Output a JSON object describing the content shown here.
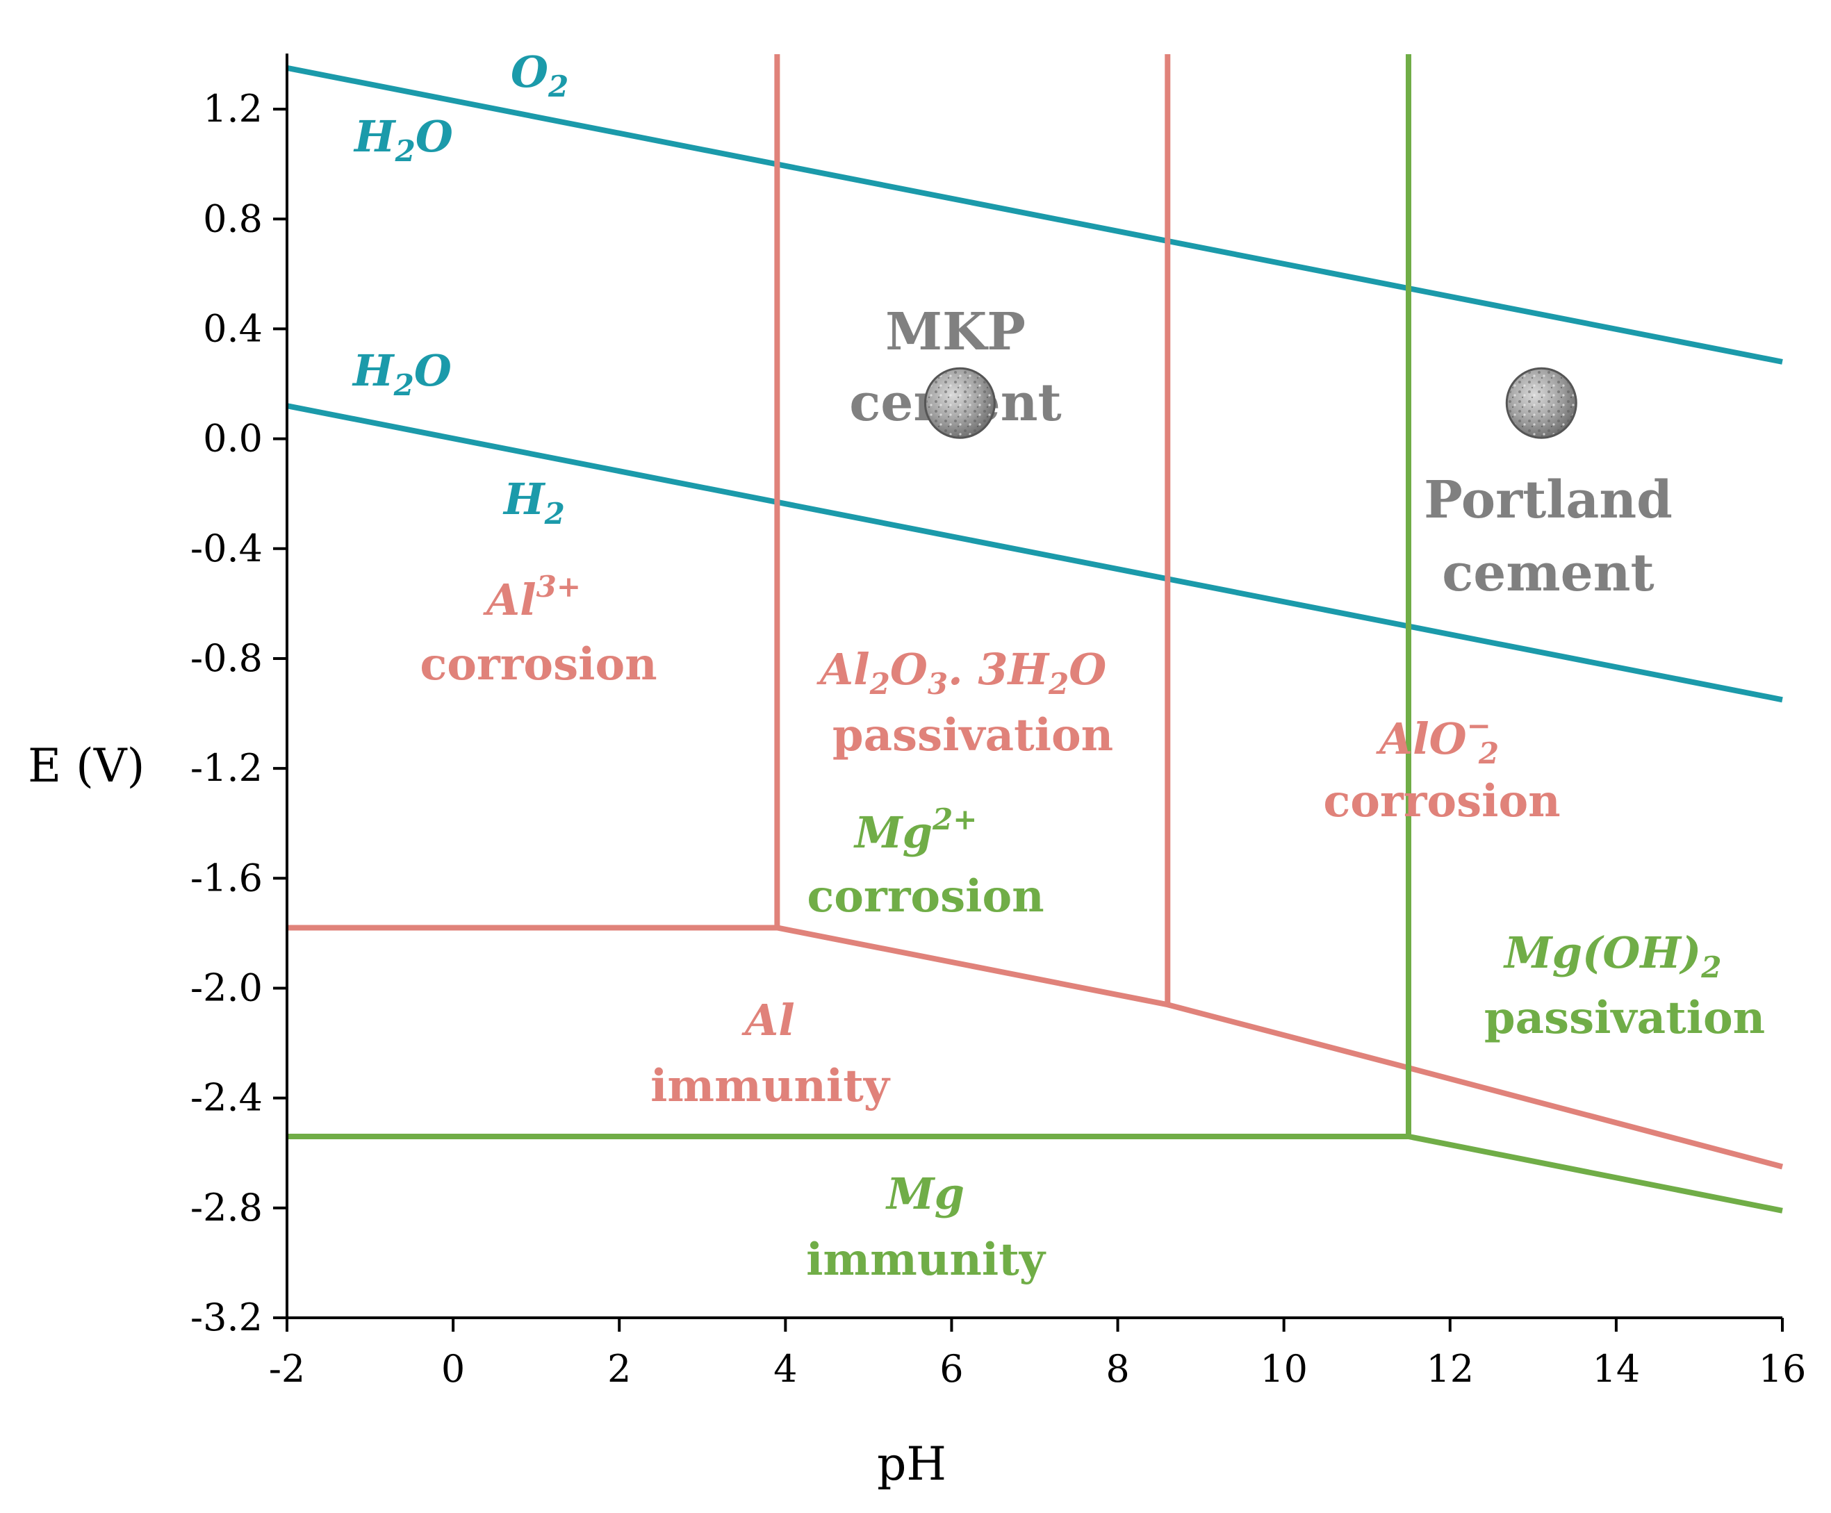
{
  "chart_data": {
    "type": "line",
    "title": "",
    "xlabel": "pH",
    "ylabel": "E (V)",
    "xlim": [
      -2,
      16
    ],
    "ylim": [
      -3.2,
      1.4
    ],
    "x_ticks": [
      -2,
      0,
      2,
      4,
      6,
      8,
      10,
      12,
      14,
      16
    ],
    "x_tick_labels": [
      "-2",
      "0",
      "2",
      "4",
      "6",
      "8",
      "10",
      "12",
      "14",
      "16"
    ],
    "y_ticks": [
      1.2,
      0.8,
      0.4,
      0.0,
      -0.4,
      -0.8,
      -1.2,
      -1.6,
      -2.0,
      -2.4,
      -2.8,
      -3.2
    ],
    "y_tick_labels": [
      "1.2",
      "0.8",
      "0.4",
      "0.0",
      "-0.4",
      "-0.8",
      "-1.2",
      "-1.6",
      "-2.0",
      "-2.4",
      "-2.8",
      "-3.2"
    ],
    "colors": {
      "water": "#1b9aaa",
      "aluminium": "#e0827a",
      "magnesium": "#70ad47",
      "cement_text": "#808080",
      "cement_marker": "#8c8c8c"
    },
    "series": [
      {
        "name": "water-o2-line",
        "group": "water",
        "x": [
          -2,
          16
        ],
        "y": [
          1.35,
          0.28
        ]
      },
      {
        "name": "water-h2-line",
        "group": "water",
        "x": [
          -2,
          16
        ],
        "y": [
          0.12,
          -0.95
        ]
      },
      {
        "name": "al-immunity-boundary",
        "group": "aluminium",
        "x": [
          -2,
          3.9,
          8.6,
          11.5,
          16
        ],
        "y": [
          -1.78,
          -1.78,
          -2.06,
          -2.29,
          -2.65
        ]
      },
      {
        "name": "al-al3plus-boundary",
        "group": "aluminium",
        "x": [
          3.9,
          3.9
        ],
        "y": [
          -1.78,
          1.4
        ]
      },
      {
        "name": "al-aluminate-boundary",
        "group": "aluminium",
        "x": [
          8.6,
          8.6
        ],
        "y": [
          -2.06,
          1.4
        ]
      },
      {
        "name": "mg-immunity-boundary",
        "group": "magnesium",
        "x": [
          -2,
          11.5,
          16
        ],
        "y": [
          -2.54,
          -2.54,
          -2.81
        ]
      },
      {
        "name": "mg-hydroxide-boundary",
        "group": "magnesium",
        "x": [
          11.5,
          11.5
        ],
        "y": [
          -2.54,
          1.4
        ]
      }
    ],
    "labels": {
      "o2": {
        "base": "O",
        "sub": "2"
      },
      "h2o_top": {
        "base": "H",
        "sub": "2",
        "tail": "O"
      },
      "h2o_bottom": {
        "base": "H",
        "sub": "2",
        "tail": "O"
      },
      "h2": {
        "base": "H",
        "sub": "2"
      },
      "al3plus": {
        "base": "Al",
        "sup": "3+",
        "state": "corrosion"
      },
      "al_oxide": {
        "p1": "Al",
        "s1": "2",
        "p2": "O",
        "s2": "3",
        "p3": ". 3H",
        "s3": "2",
        "p4": "O",
        "state": "passivation"
      },
      "aluminate": {
        "base": "AlO",
        "sup": "−",
        "sub": "2",
        "state": "corrosion"
      },
      "mg2plus": {
        "base": "Mg",
        "sup": "2+",
        "state": "corrosion"
      },
      "mg_hydroxide": {
        "base": "Mg(OH)",
        "sub": "2",
        "state": "passivation"
      },
      "al_immunity": {
        "base": "Al",
        "state": "immunity"
      },
      "mg_immunity": {
        "base": "Mg",
        "state": "immunity"
      },
      "mkp_cement": {
        "line1": "MKP",
        "line2": "cement"
      },
      "portland_cement": {
        "line1": "Portland",
        "line2": "cement"
      }
    },
    "markers": [
      {
        "name": "mkp-cement-marker",
        "x": 6.1,
        "y": 0.13
      },
      {
        "name": "portland-cement-marker",
        "x": 13.1,
        "y": 0.13
      }
    ]
  }
}
